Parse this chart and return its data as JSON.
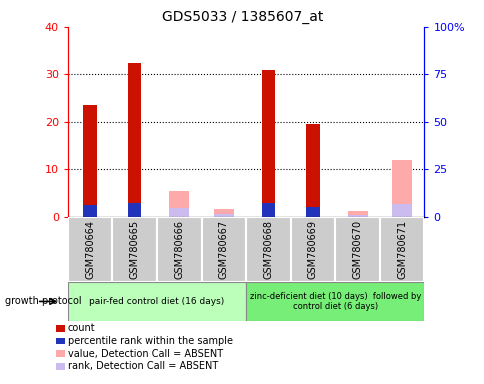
{
  "title": "GDS5033 / 1385607_at",
  "samples": [
    "GSM780664",
    "GSM780665",
    "GSM780666",
    "GSM780667",
    "GSM780668",
    "GSM780669",
    "GSM780670",
    "GSM780671"
  ],
  "count_values": [
    23.5,
    32.5,
    0,
    0,
    31.0,
    19.5,
    0,
    0
  ],
  "percentile_values": [
    6.5,
    7.5,
    0,
    0,
    7.5,
    5.0,
    0,
    0
  ],
  "absent_value_values": [
    0,
    0,
    13.5,
    4.0,
    0,
    0,
    3.0,
    30.0
  ],
  "absent_rank_values": [
    0,
    0,
    4.5,
    1.5,
    0,
    0,
    1.0,
    7.0
  ],
  "group1_label": "pair-fed control diet (16 days)",
  "group2_label": "zinc-deficient diet (10 days)  followed by\ncontrol diet (6 days)",
  "group_protocol": "growth protocol",
  "group1_indices": [
    0,
    1,
    2,
    3
  ],
  "group2_indices": [
    4,
    5,
    6,
    7
  ],
  "left_ylim": [
    0,
    40
  ],
  "right_ylim": [
    0,
    100
  ],
  "left_yticks": [
    0,
    10,
    20,
    30,
    40
  ],
  "right_yticks": [
    0,
    25,
    50,
    75,
    100
  ],
  "right_yticklabels": [
    "0",
    "25",
    "50",
    "75",
    "100%"
  ],
  "color_count": "#cc1100",
  "color_percentile": "#2233bb",
  "color_absent_value": "#ffaaaa",
  "color_absent_rank": "#ccbbee",
  "color_group1_bg": "#bbffbb",
  "color_group2_bg": "#77ee77",
  "color_sample_bg": "#cccccc",
  "bar_width": 0.3,
  "absent_bar_width": 0.25,
  "legend_items": [
    {
      "label": "count",
      "color": "#cc1100"
    },
    {
      "label": "percentile rank within the sample",
      "color": "#2233bb"
    },
    {
      "label": "value, Detection Call = ABSENT",
      "color": "#ffaaaa"
    },
    {
      "label": "rank, Detection Call = ABSENT",
      "color": "#ccbbee"
    }
  ]
}
